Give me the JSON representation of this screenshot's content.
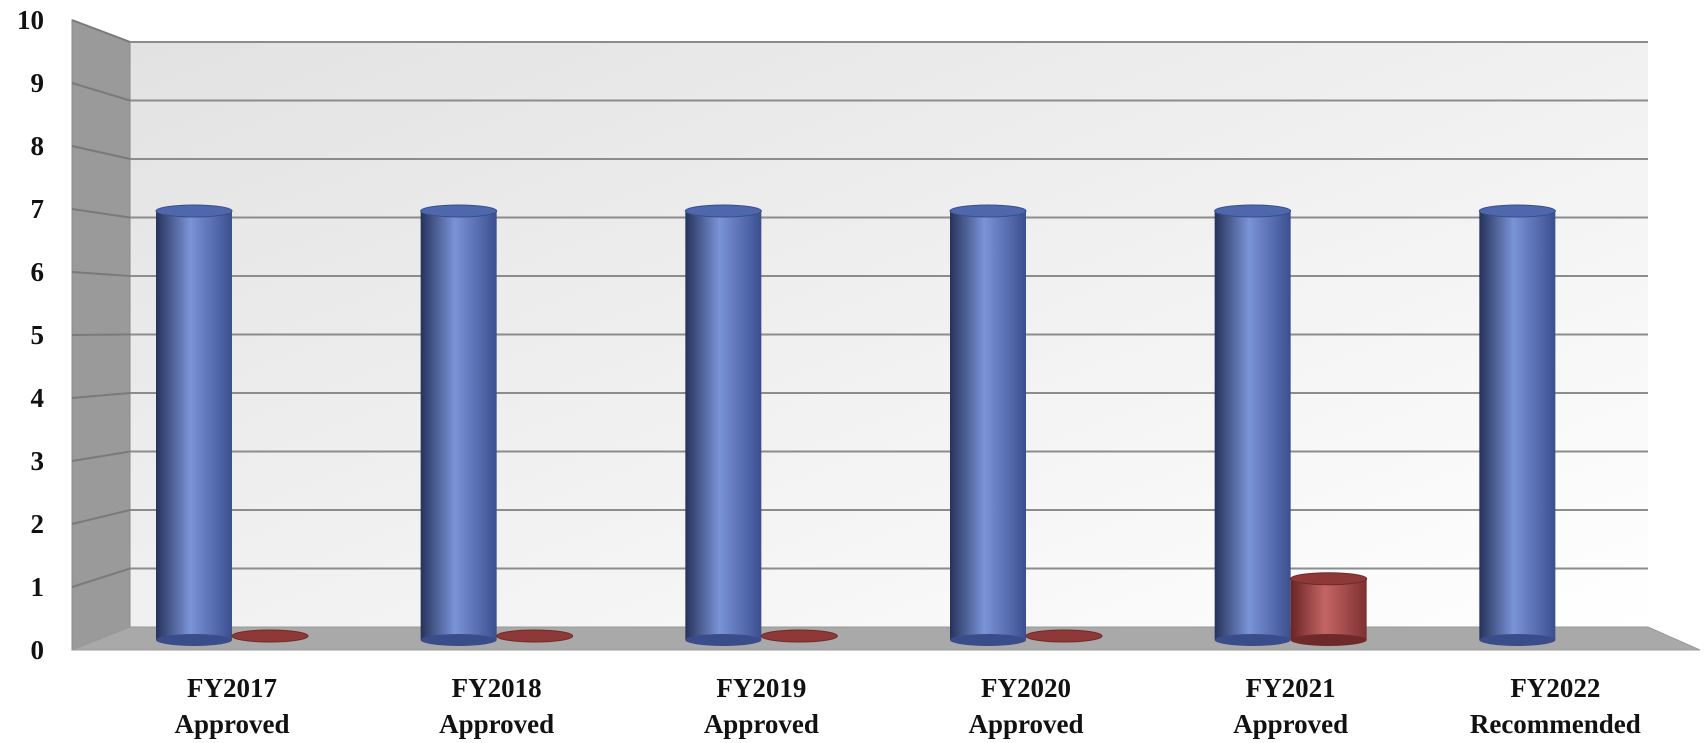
{
  "chart_data": {
    "type": "bar",
    "style": "3d-cylinder",
    "title": "",
    "xlabel": "",
    "ylabel": "",
    "ylim": [
      0,
      10
    ],
    "yticks": [
      "0",
      "1",
      "2",
      "3",
      "4",
      "5",
      "6",
      "7",
      "8",
      "9",
      "10"
    ],
    "grid": true,
    "legend": "none",
    "categories": [
      [
        "FY2017",
        "Approved"
      ],
      [
        "FY2018",
        "Approved"
      ],
      [
        "FY2019",
        "Approved"
      ],
      [
        "FY2020",
        "Approved"
      ],
      [
        "FY2021",
        "Approved"
      ],
      [
        "FY2022",
        "Recommended"
      ]
    ],
    "series": [
      {
        "color": "#5b76c0",
        "values": [
          7,
          7,
          7,
          7,
          7,
          7
        ]
      },
      {
        "color": "#a94a4a",
        "values": [
          0,
          0,
          0,
          0,
          1,
          null
        ]
      }
    ]
  }
}
